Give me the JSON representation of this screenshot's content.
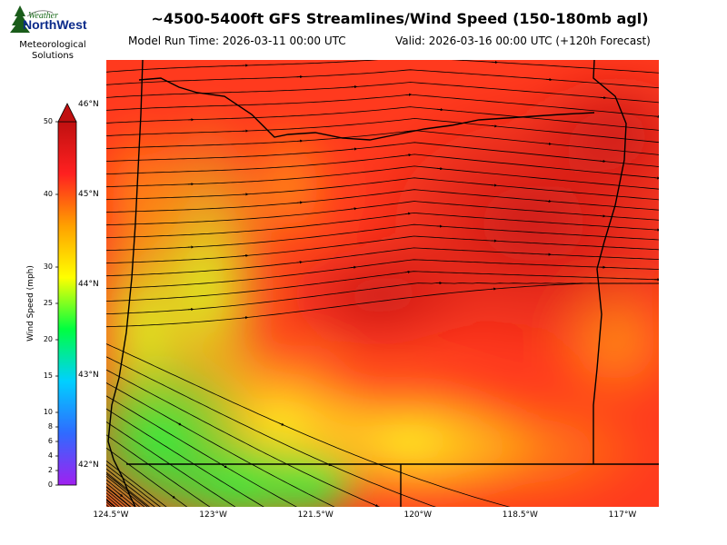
{
  "header": {
    "title": "~4500-5400ft GFS Streamlines/Wind Speed (150-180mb agl)",
    "model_run": "Model Run Time: 2026-03-11 00:00 UTC",
    "valid": "Valid: 2026-03-16 00:00 UTC  (+120h Forecast)"
  },
  "logo": {
    "word1": "Weather",
    "word2": "NorthWest",
    "line1": "Meteorological",
    "line2": "Solutions"
  },
  "colorbar": {
    "label": "Wind Speed (mph)",
    "ticks": [
      "0",
      "2",
      "4",
      "6",
      "8",
      "10",
      "15",
      "20",
      "25",
      "30",
      "40",
      "50"
    ],
    "tick_values": [
      0,
      2,
      4,
      6,
      8,
      10,
      15,
      20,
      25,
      30,
      40,
      50
    ],
    "min": 0,
    "max": 50,
    "colors": [
      "#a020f0",
      "#2f6bff",
      "#00d0ff",
      "#00ff40",
      "#ffff00",
      "#ffa000",
      "#ff2020",
      "#c01010"
    ]
  },
  "map": {
    "lon_range": [
      -124.5,
      -116.4
    ],
    "lat_range": [
      41.55,
      46.5
    ],
    "lon_ticks": [
      {
        "value": -124.5,
        "label": "124.5°W"
      },
      {
        "value": -123,
        "label": "123°W"
      },
      {
        "value": -121.5,
        "label": "121.5°W"
      },
      {
        "value": -120,
        "label": "120°W"
      },
      {
        "value": -118.5,
        "label": "118.5°W"
      },
      {
        "value": -117,
        "label": "117°W"
      }
    ],
    "lat_ticks": [
      {
        "value": 46,
        "label": "46°N"
      },
      {
        "value": 45,
        "label": "45°N"
      },
      {
        "value": 44,
        "label": "44°N"
      },
      {
        "value": 43,
        "label": "43°N"
      },
      {
        "value": 42,
        "label": "42°N"
      }
    ]
  }
}
